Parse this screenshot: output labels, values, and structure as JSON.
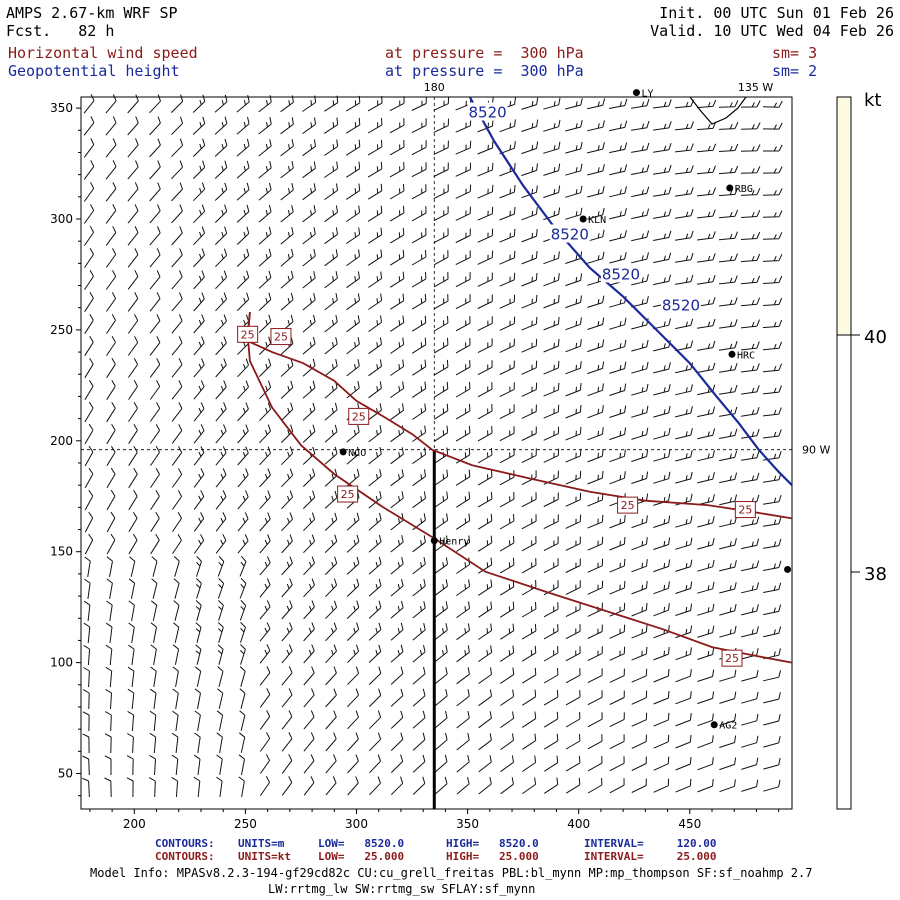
{
  "header": {
    "model": "AMPS 2.67-km WRF SP",
    "fcst": "Fcst.   82 h",
    "init": "Init. 00 UTC Sun 01 Feb 26",
    "valid": "Valid. 10 UTC Wed 04 Feb 26",
    "field1_name": "Horizontal wind speed",
    "field1_level": "at pressure =  300 hPa",
    "field1_sm": "sm= 3",
    "field2_name": "Geopotential height",
    "field2_level": "at pressure =  300 hPa",
    "field2_sm": "sm= 2",
    "colors": {
      "red": "#8b1a1a",
      "blue": "#1a2a9a"
    }
  },
  "chart_data": {
    "type": "contour",
    "x": {
      "ticks": [
        200,
        250,
        300,
        350,
        400,
        450
      ],
      "range": [
        176,
        496
      ]
    },
    "y": {
      "ticks": [
        50,
        100,
        150,
        200,
        250,
        300,
        350
      ],
      "range": [
        34,
        355
      ]
    },
    "grid_lines": [
      {
        "label": "180",
        "orientation": "vertical",
        "x": 335
      },
      {
        "label": "135 W",
        "orientation": "vertical",
        "x": 476
      },
      {
        "label": "90 W",
        "orientation": "horizontal",
        "y": 196
      }
    ],
    "cross_section": {
      "x": 335,
      "y_from": 34,
      "y_to": 196
    },
    "height_contours": [
      {
        "value": 8520,
        "label": "8520",
        "points": [
          [
            351,
            355
          ],
          [
            362,
            335
          ],
          [
            375,
            315
          ],
          [
            390,
            295
          ],
          [
            405,
            278
          ],
          [
            420,
            265
          ],
          [
            435,
            250
          ],
          [
            450,
            235
          ],
          [
            462,
            220
          ],
          [
            472,
            208
          ],
          [
            481,
            196
          ],
          [
            490,
            186
          ],
          [
            496,
            180
          ]
        ],
        "labels_at": [
          [
            359,
            348
          ],
          [
            396,
            293
          ],
          [
            419,
            275
          ],
          [
            446,
            261
          ]
        ]
      }
    ],
    "speed_contours": [
      {
        "value": 25,
        "label": "25",
        "points": [
          [
            252,
            258
          ],
          [
            251,
            245
          ],
          [
            262,
            240
          ],
          [
            276,
            235
          ],
          [
            290,
            227
          ],
          [
            300,
            218
          ],
          [
            312,
            211
          ],
          [
            325,
            203
          ],
          [
            334,
            196
          ],
          [
            352,
            189
          ],
          [
            378,
            183
          ],
          [
            405,
            177
          ],
          [
            430,
            173
          ],
          [
            458,
            171
          ],
          [
            478,
            168
          ],
          [
            496,
            165
          ]
        ],
        "labels_at": [
          [
            266,
            247
          ],
          [
            301,
            211
          ],
          [
            422,
            171
          ],
          [
            475,
            169
          ]
        ]
      },
      {
        "value": 25,
        "label": "25",
        "points": [
          [
            252,
            258
          ],
          [
            251,
            248
          ],
          [
            252,
            236
          ],
          [
            262,
            215
          ],
          [
            275,
            198
          ],
          [
            290,
            185
          ],
          [
            312,
            170
          ],
          [
            335,
            156
          ],
          [
            358,
            141
          ],
          [
            385,
            132
          ],
          [
            410,
            124
          ],
          [
            438,
            115
          ],
          [
            460,
            107
          ],
          [
            480,
            103
          ],
          [
            496,
            100
          ]
        ],
        "labels_at": [
          [
            251,
            248
          ],
          [
            296,
            176
          ],
          [
            469,
            102
          ]
        ]
      }
    ],
    "stations": [
      {
        "name": "RBG",
        "x": 468,
        "y": 314
      },
      {
        "name": "KLN",
        "x": 402,
        "y": 300
      },
      {
        "name": "HRC",
        "x": 469,
        "y": 239
      },
      {
        "name": "NCO",
        "x": 294,
        "y": 195
      },
      {
        "name": "Henry",
        "x": 335,
        "y": 155
      },
      {
        "name": "AG2",
        "x": 461,
        "y": 72
      },
      {
        "name": "",
        "x": 494,
        "y": 142
      },
      {
        "name": "LY",
        "x": 426,
        "y": 357
      }
    ],
    "colorbar": {
      "unit": "kt",
      "labels": [
        "40",
        "38"
      ],
      "fill": "#fdfae2"
    }
  },
  "footer": {
    "row1": {
      "label": "CONTOURS:",
      "units": "UNITS=m",
      "low": "LOW=   8520.0",
      "high": "HIGH=   8520.0",
      "interval": "INTERVAL=     120.00"
    },
    "row2": {
      "label": "CONTOURS:",
      "units": "UNITS=kt",
      "low": "LOW=   25.000",
      "high": "HIGH=   25.000",
      "interval": "INTERVAL=     25.000"
    },
    "model_info": "Model Info: MPASv8.2.3-194-gf29cd82c CU:cu_grell_freitas PBL:bl_mynn MP:mp_thompson SF:sf_noahmp 2.7",
    "model_info2": "LW:rrtmg_lw SW:rrtmg_sw SFLAY:sf_mynn"
  }
}
